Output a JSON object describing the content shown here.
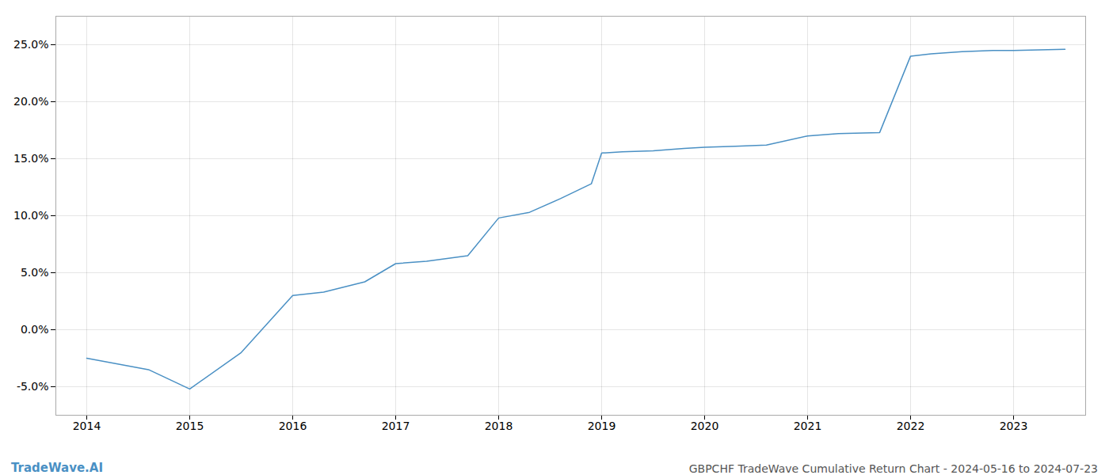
{
  "chart_data": {
    "type": "line",
    "title": "GBPCHF TradeWave Cumulative Return Chart - 2024-05-16 to 2024-07-23",
    "annotations": [
      "TradeWave.AI"
    ],
    "x": [
      2014.0,
      2014.6,
      2015.0,
      2015.5,
      2016.0,
      2016.3,
      2016.7,
      2017.0,
      2017.3,
      2017.7,
      2018.0,
      2018.3,
      2018.6,
      2018.9,
      2019.0,
      2019.2,
      2019.5,
      2019.8,
      2020.0,
      2020.3,
      2020.6,
      2021.0,
      2021.3,
      2021.7,
      2022.0,
      2022.2,
      2022.5,
      2022.8,
      2023.0,
      2023.5
    ],
    "values": [
      -2.5,
      -3.5,
      -5.2,
      -2.0,
      3.0,
      3.3,
      4.2,
      5.8,
      6.0,
      6.5,
      9.8,
      10.3,
      11.5,
      12.8,
      15.5,
      15.6,
      15.7,
      15.9,
      16.0,
      16.1,
      16.2,
      17.0,
      17.2,
      17.3,
      24.0,
      24.2,
      24.4,
      24.5,
      24.5,
      24.6
    ],
    "color": "#4a90c4",
    "xlim": [
      2013.7,
      2023.7
    ],
    "ylim": [
      -7.5,
      27.5
    ],
    "xticks": [
      2014,
      2015,
      2016,
      2017,
      2018,
      2019,
      2020,
      2021,
      2022,
      2023
    ],
    "yticks": [
      {
        "value": -5.0,
        "label": "-5.0%"
      },
      {
        "value": 0.0,
        "label": "0.0%"
      },
      {
        "value": 5.0,
        "label": "5.0%"
      },
      {
        "value": 10.0,
        "label": "10.0%"
      },
      {
        "value": 15.0,
        "label": "15.0%"
      },
      {
        "value": 20.0,
        "label": "20.0%"
      },
      {
        "value": 25.0,
        "label": "25.0%"
      }
    ],
    "grid": true
  }
}
